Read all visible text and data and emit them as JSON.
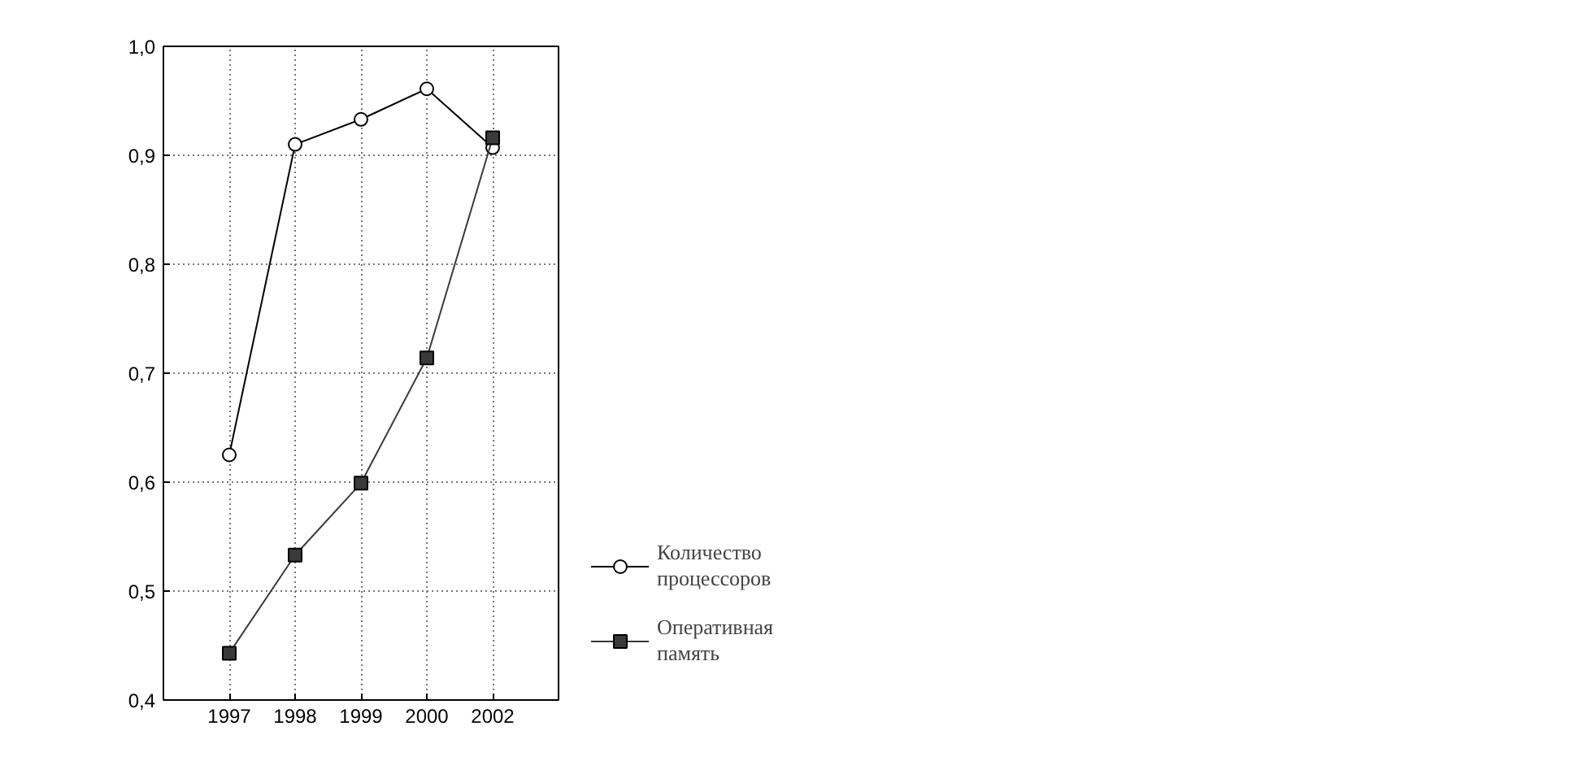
{
  "chart_data": {
    "type": "line",
    "categories": [
      "1997",
      "1998",
      "1999",
      "2000",
      "2002"
    ],
    "series": [
      {
        "name": "Количество процессоров",
        "color": "#000000",
        "marker": "circle",
        "values": [
          0.625,
          0.91,
          0.933,
          0.961,
          0.907
        ]
      },
      {
        "name": "Оперативная память",
        "color": "#3a3a3a",
        "marker": "square",
        "values": [
          0.443,
          0.533,
          0.599,
          0.714,
          0.916
        ]
      }
    ],
    "ylim": [
      0.4,
      1.0
    ],
    "yticks": [
      {
        "value": 0.4,
        "label": "0,4"
      },
      {
        "value": 0.5,
        "label": "0,5"
      },
      {
        "value": 0.6,
        "label": "0,6"
      },
      {
        "value": 0.7,
        "label": "0,7"
      },
      {
        "value": 0.8,
        "label": "0,8"
      },
      {
        "value": 0.9,
        "label": "0,9"
      },
      {
        "value": 1.0,
        "label": "1,0"
      }
    ],
    "grid": true,
    "legend": "bottom right",
    "line_style": "solid"
  }
}
